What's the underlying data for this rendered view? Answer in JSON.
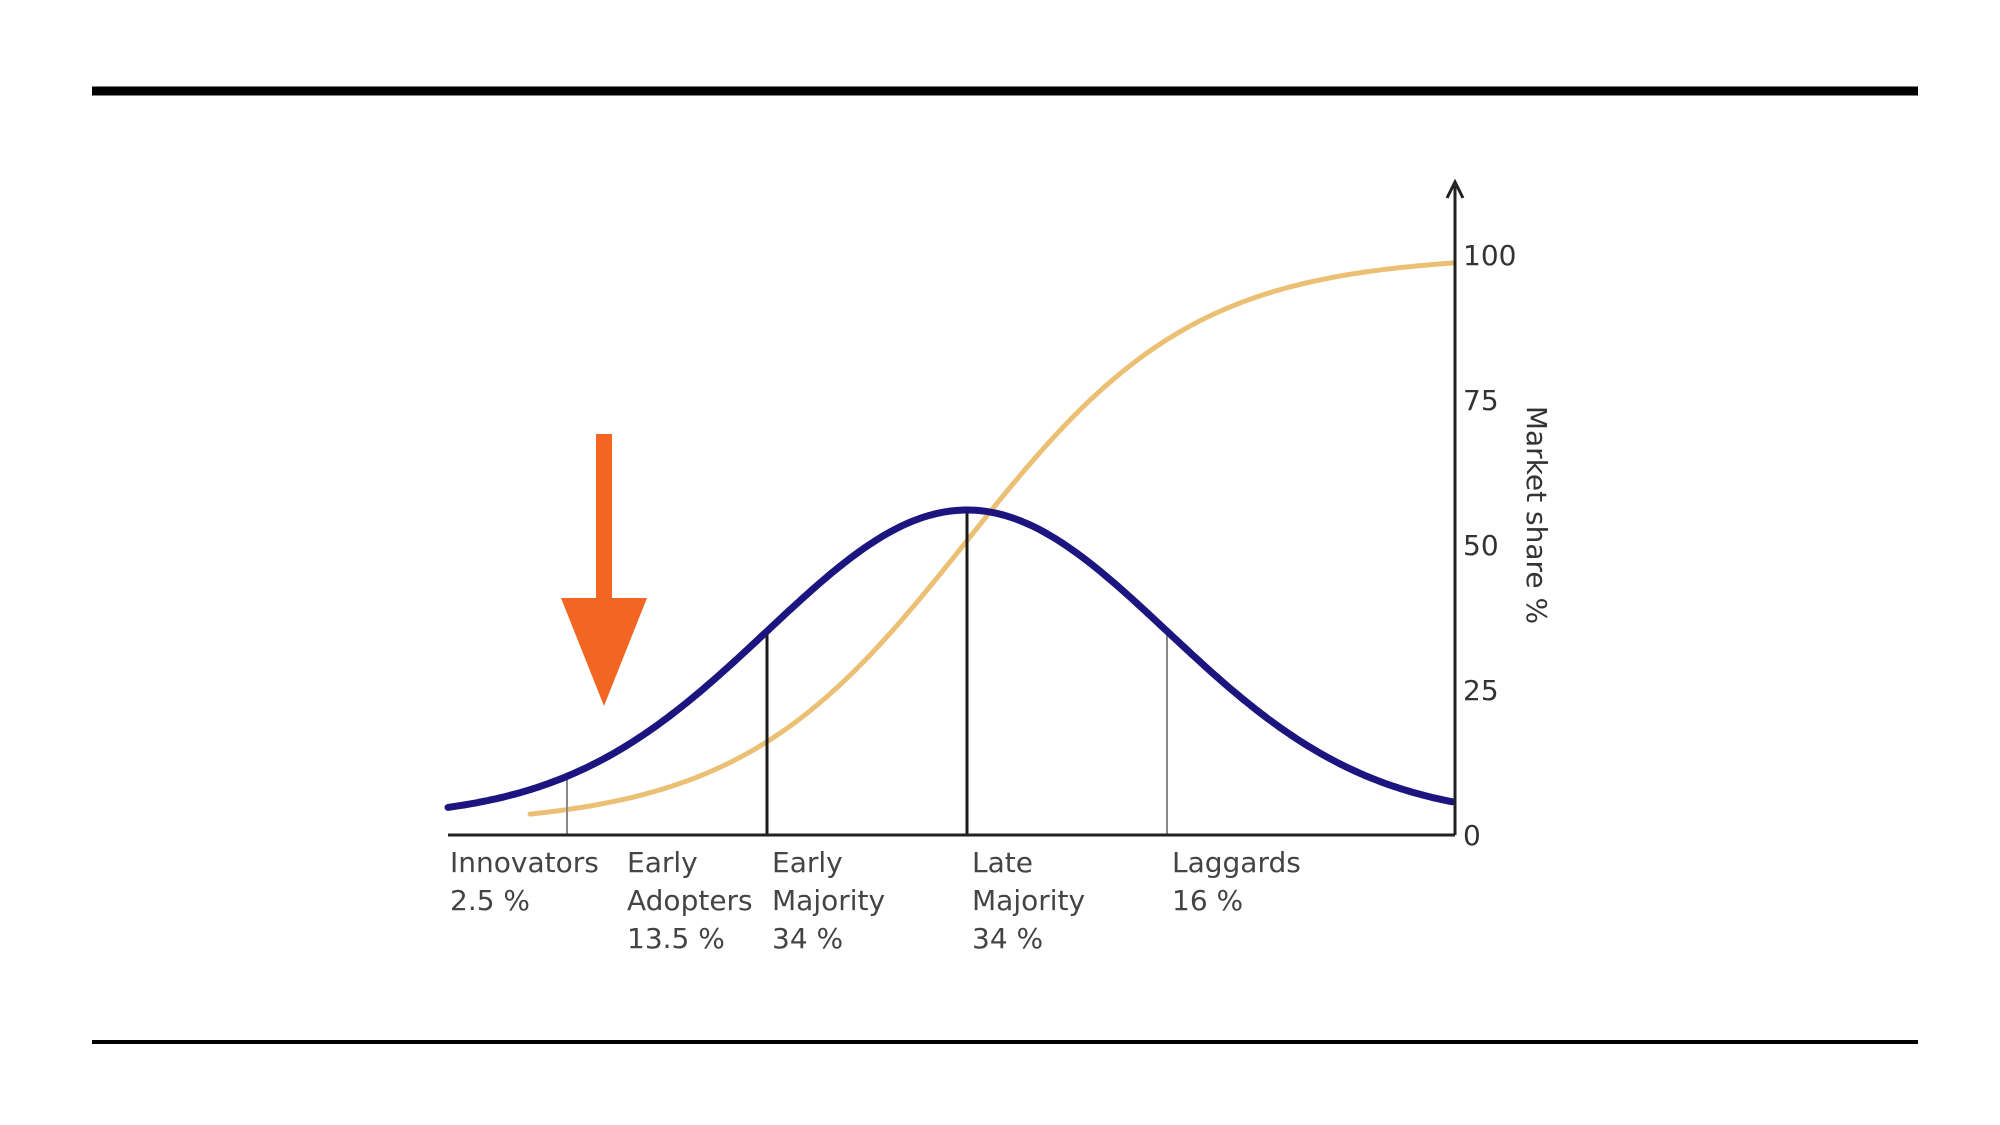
{
  "colors": {
    "background": "#ffffff",
    "rule": "#000000",
    "bell_curve": "#1c1580",
    "s_curve": "#ecc074",
    "axis": "#222222",
    "arrow": "#f26522"
  },
  "chart_data": {
    "type": "line",
    "title": "",
    "xlabel": "",
    "ylabel": "Market share %",
    "ylim": [
      0,
      100
    ],
    "y_ticks": [
      "0",
      "25",
      "50",
      "75",
      "100"
    ],
    "y_axis_side": "right",
    "grid": false,
    "legend": "none",
    "series": [
      {
        "kind": "bell",
        "note_points": {
          "x": [
            -3.0,
            -2.0,
            -1.0,
            0.0,
            1.0,
            2.0,
            3.0
          ],
          "y": [
            1,
            12,
            34,
            56,
            34,
            12,
            1
          ]
        }
      },
      {
        "kind": "cumulative",
        "note_points": {
          "x": [
            -3.0,
            -2.0,
            -1.0,
            0.0,
            1.0,
            2.0,
            3.0
          ],
          "y": [
            2,
            7,
            18,
            55,
            85,
            96,
            100
          ]
        }
      }
    ],
    "segments": [
      {
        "name": "Innovators",
        "lines": [
          "Innovators",
          "2.5 %"
        ]
      },
      {
        "name": "Early Adopters",
        "lines": [
          "Early",
          "Adopters",
          "13.5 %"
        ]
      },
      {
        "name": "Early Majority",
        "lines": [
          "Early",
          "Majority",
          "34 %"
        ]
      },
      {
        "name": "Late Majority",
        "lines": [
          "Late",
          "Majority",
          "34 %"
        ]
      },
      {
        "name": "Laggards",
        "lines": [
          "Laggards",
          "16 %"
        ]
      }
    ],
    "segment_boundaries_sd": [
      -2,
      -1,
      0,
      1
    ],
    "annotation": {
      "type": "arrow",
      "points_to": "Early Adopters"
    }
  }
}
